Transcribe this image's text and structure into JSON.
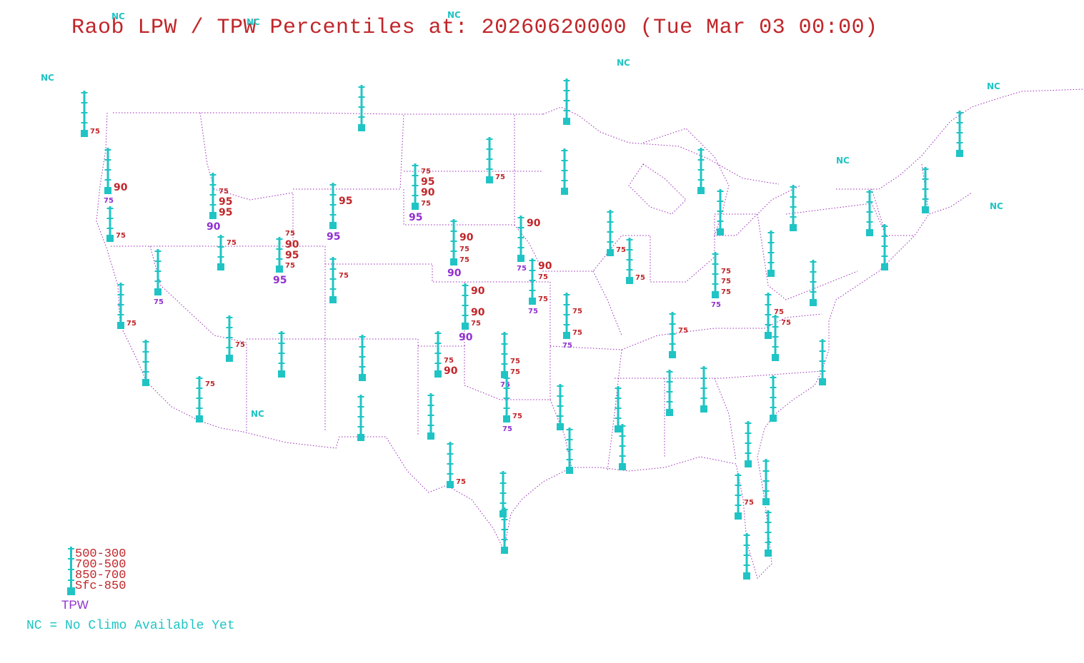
{
  "title": "Raob LPW / TPW Percentiles at: 20260620000 (Tue Mar 03 00:00)",
  "colors": {
    "station": "#20c4c4",
    "layer_pct": "#c0262a",
    "tpw_pct": "#9030d0",
    "boundary": "#9a2ab8"
  },
  "nc_label": "NC",
  "legend": {
    "layers": [
      "500-300",
      "700-500",
      "850-700",
      "Sfc-850"
    ],
    "tpw": "TPW",
    "note": "NC = No Climo Available Yet"
  },
  "stations": [
    {
      "labels": [
        {
          "t": "75"
        }
      ]
    },
    {
      "labels": [
        {
          "t": "90"
        }
      ],
      "tpw": "75"
    },
    {
      "labels": [
        {
          "t": "75"
        }
      ]
    },
    {
      "labels": [
        {
          "t": "75"
        },
        {
          "t": "95"
        },
        {
          "t": "95"
        }
      ],
      "tpw": "90"
    },
    {
      "labels": [
        {
          "t": "75"
        }
      ]
    },
    {
      "labels": [],
      "tpw": "75"
    },
    {
      "labels": [
        {
          "t": "75"
        },
        {
          "t": "90"
        },
        {
          "t": "95"
        },
        {
          "t": "75"
        }
      ],
      "tpw": "95"
    },
    {
      "labels": [
        {
          "t": "95"
        }
      ],
      "tpw": "95"
    },
    {
      "labels": [
        {
          "t": "75"
        }
      ]
    },
    {
      "labels": []
    },
    {
      "labels": []
    },
    {
      "labels": [
        {
          "t": "75"
        },
        {
          "t": "95"
        },
        {
          "t": "90"
        },
        {
          "t": "75"
        }
      ],
      "tpw": "95"
    },
    {
      "labels": [
        {
          "t": "75"
        }
      ]
    },
    {
      "labels": []
    },
    {
      "labels": []
    },
    {
      "labels": [
        {
          "t": "90"
        },
        {
          "t": "75"
        },
        {
          "t": "75"
        }
      ],
      "tpw": "90"
    },
    {
      "labels": [
        {
          "t": "90"
        }
      ],
      "tpw": "75"
    },
    {
      "labels": [
        {
          "t": "90"
        },
        {
          "t": "75"
        },
        {
          "t": "75"
        }
      ],
      "tpw": "75"
    },
    {
      "labels": [
        {
          "t": "90"
        },
        {
          "t": "90"
        },
        {
          "t": "75"
        }
      ],
      "tpw": "90"
    },
    {
      "labels": [
        {
          "t": "75"
        },
        {
          "t": "75"
        }
      ],
      "tpw": "75"
    },
    {
      "labels": [
        {
          "t": "75"
        }
      ]
    },
    {
      "labels": [
        {
          "t": "75"
        }
      ]
    },
    {
      "labels": []
    },
    {
      "labels": [
        {
          "t": "75"
        }
      ]
    },
    {
      "labels": [
        {
          "t": "75"
        }
      ]
    },
    {
      "labels": []
    },
    {
      "labels": [
        {
          "t": "75"
        }
      ]
    },
    {
      "labels": []
    },
    {
      "labels": []
    },
    {
      "labels": []
    },
    {
      "labels": [
        {
          "t": "75"
        },
        {
          "t": "90"
        }
      ]
    },
    {
      "labels": [
        {
          "t": "75"
        },
        {
          "t": "75"
        }
      ],
      "tpw": "75"
    },
    {
      "labels": [
        {
          "t": "75"
        }
      ],
      "tpw": "75"
    },
    {
      "labels": []
    },
    {
      "labels": []
    },
    {
      "labels": []
    },
    {
      "labels": []
    },
    {
      "labels": []
    },
    {
      "labels": []
    },
    {
      "labels": []
    },
    {
      "labels": [
        {
          "t": "75"
        }
      ]
    },
    {
      "labels": []
    },
    {
      "labels": []
    },
    {
      "labels": []
    },
    {
      "labels": []
    },
    {
      "labels": []
    },
    {
      "labels": []
    },
    {
      "labels": [
        {
          "t": "75"
        }
      ]
    },
    {
      "labels": []
    },
    {
      "labels": [
        {
          "t": "75"
        },
        {
          "t": "75"
        },
        {
          "t": "75"
        }
      ],
      "tpw": "75"
    },
    {
      "labels": []
    },
    {
      "labels": [
        {
          "t": "75"
        }
      ]
    },
    {
      "labels": [
        {
          "t": "75"
        }
      ]
    },
    {
      "labels": []
    },
    {
      "labels": []
    },
    {
      "labels": []
    },
    {
      "labels": []
    },
    {
      "labels": []
    },
    {
      "labels": []
    },
    {
      "labels": [
        {
          "t": "75"
        }
      ]
    },
    {
      "labels": []
    },
    {
      "labels": []
    },
    {
      "labels": []
    },
    {
      "labels": []
    },
    {
      "labels": []
    },
    {
      "labels": []
    },
    {
      "labels": []
    },
    {
      "labels": []
    }
  ]
}
